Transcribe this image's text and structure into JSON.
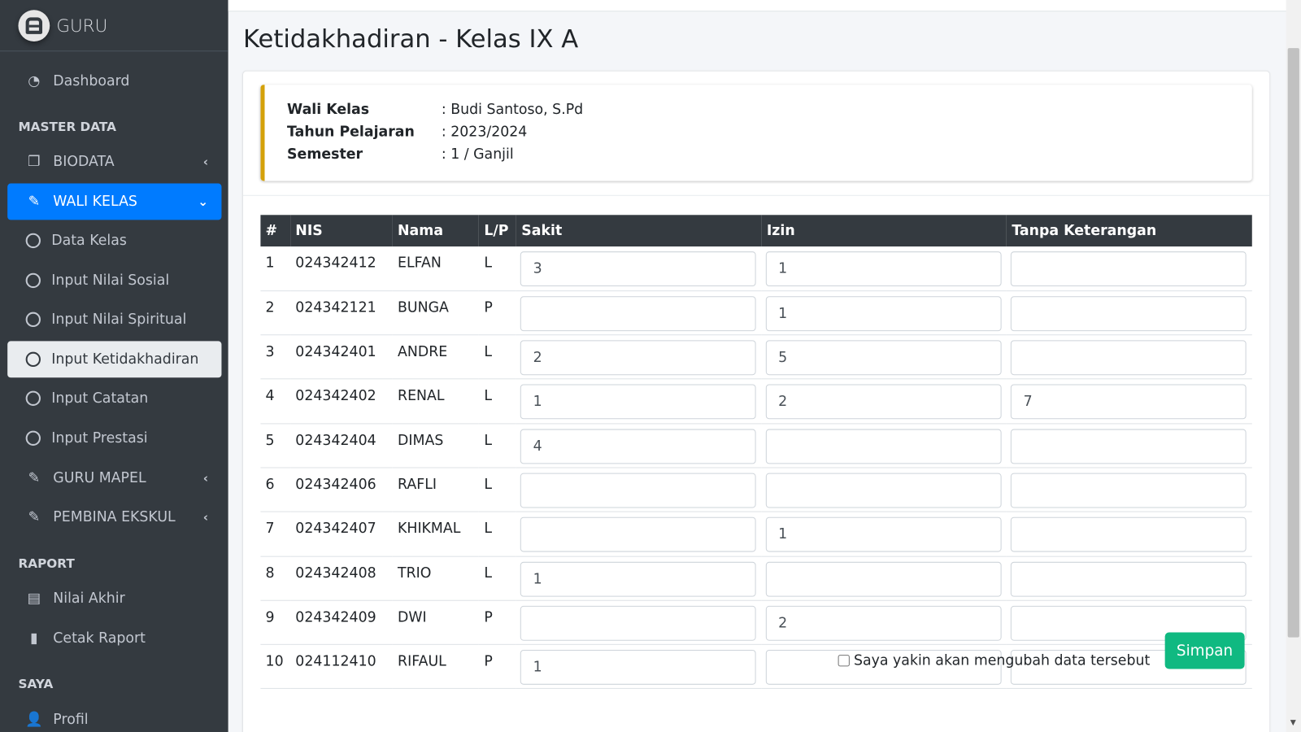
{
  "brand": {
    "name": "GURU"
  },
  "sidebar": {
    "dashboard": "Dashboard",
    "headers": [
      "MASTER DATA",
      "RAPORT",
      "SAYA"
    ],
    "biodata": "BIODATA",
    "wali_kelas": "WALI KELAS",
    "sub_items": [
      "Data Kelas",
      "Input Nilai Sosial",
      "Input Nilai Spiritual",
      "Input Ketidakhadiran",
      "Input Catatan",
      "Input Prestasi"
    ],
    "guru_mapel": "GURU MAPEL",
    "pembina_ekskul": "PEMBINA EKSKUL",
    "nilai_akhir": "Nilai Akhir",
    "cetak_raport": "Cetak Raport",
    "profil": "Profil"
  },
  "page": {
    "title": "Ketidakhadiran - Kelas IX A"
  },
  "info": [
    {
      "label": "Wali Kelas",
      "value": ": Budi Santoso, S.Pd"
    },
    {
      "label": "Tahun Pelajaran",
      "value": ": 2023/2024"
    },
    {
      "label": "Semester",
      "value": ": 1 / Ganjil"
    }
  ],
  "table": {
    "headers": [
      "#",
      "NIS",
      "Nama",
      "L/P",
      "Sakit",
      "Izin",
      "Tanpa Keterangan"
    ],
    "rows": [
      {
        "no": "1",
        "nis": "024342412",
        "nama": "ELFAN",
        "lp": "L",
        "sakit": "3",
        "izin": "1",
        "tk": ""
      },
      {
        "no": "2",
        "nis": "024342121",
        "nama": "BUNGA",
        "lp": "P",
        "sakit": "",
        "izin": "1",
        "tk": ""
      },
      {
        "no": "3",
        "nis": "024342401",
        "nama": "ANDRE",
        "lp": "L",
        "sakit": "2",
        "izin": "5",
        "tk": ""
      },
      {
        "no": "4",
        "nis": "024342402",
        "nama": "RENAL",
        "lp": "L",
        "sakit": "1",
        "izin": "2",
        "tk": "7"
      },
      {
        "no": "5",
        "nis": "024342404",
        "nama": "DIMAS",
        "lp": "L",
        "sakit": "4",
        "izin": "",
        "tk": ""
      },
      {
        "no": "6",
        "nis": "024342406",
        "nama": "RAFLI",
        "lp": "L",
        "sakit": "",
        "izin": "",
        "tk": ""
      },
      {
        "no": "7",
        "nis": "024342407",
        "nama": "KHIKMAL",
        "lp": "L",
        "sakit": "",
        "izin": "1",
        "tk": ""
      },
      {
        "no": "8",
        "nis": "024342408",
        "nama": "TRIO",
        "lp": "L",
        "sakit": "1",
        "izin": "",
        "tk": ""
      },
      {
        "no": "9",
        "nis": "024342409",
        "nama": "DWI",
        "lp": "P",
        "sakit": "",
        "izin": "2",
        "tk": ""
      },
      {
        "no": "10",
        "nis": "024112410",
        "nama": "RIFAUL",
        "lp": "P",
        "sakit": "1",
        "izin": "",
        "tk": ""
      }
    ]
  },
  "footer": {
    "confirm_label": "Saya yakin akan mengubah data tersebut",
    "confirm_checked": false,
    "save_label": "Simpan"
  },
  "colors": {
    "sidebar": "#343a40",
    "active": "#007bff",
    "callout": "#d4a10a",
    "save": "#10b981"
  }
}
